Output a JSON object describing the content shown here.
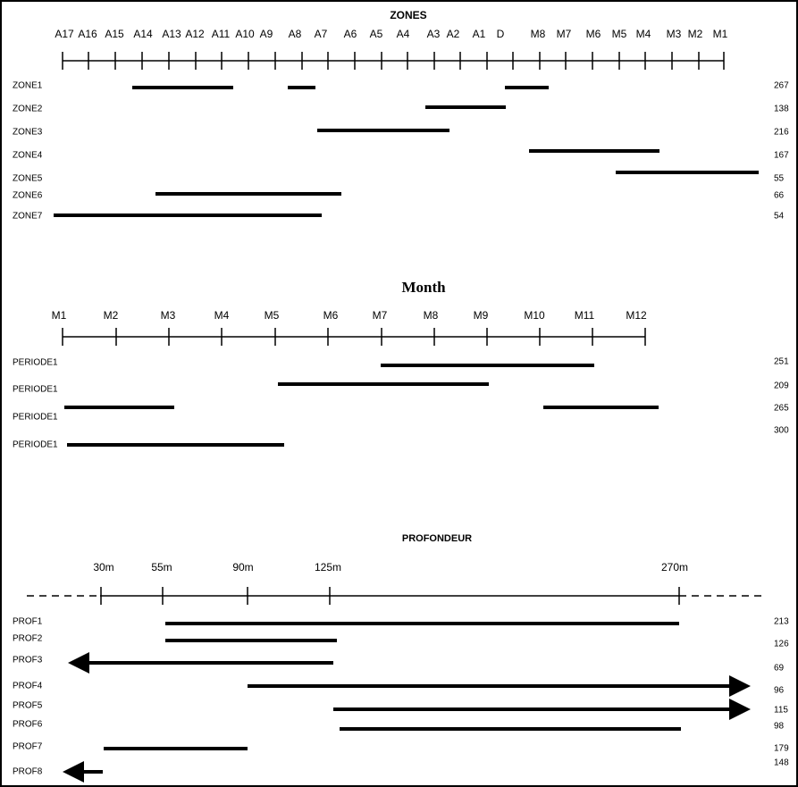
{
  "zones": {
    "title": "ZONES",
    "axis_labels": [
      "A17",
      "A16",
      "A15",
      "A14",
      "A13",
      "A12",
      "A11",
      "A10",
      "A9",
      "A8",
      "A7",
      "A6",
      "A5",
      "A4",
      "A3",
      "A2",
      "A1",
      "D",
      "M8",
      "M7",
      "M6",
      "M5",
      "M4",
      "M3",
      "M2",
      "M1"
    ],
    "rows": [
      {
        "label": "ZONE1",
        "value": "267"
      },
      {
        "label": "ZONE2",
        "value": "138"
      },
      {
        "label": "ZONE3",
        "value": "216"
      },
      {
        "label": "ZONE4",
        "value": "167"
      },
      {
        "label": "ZONE5",
        "value": "55"
      },
      {
        "label": "ZONE6",
        "value": "66"
      },
      {
        "label": "ZONE7",
        "value": "54"
      }
    ]
  },
  "month": {
    "title": "Month",
    "axis_labels": [
      "M1",
      "M2",
      "M3",
      "M4",
      "M5",
      "M6",
      "M7",
      "M8",
      "M9",
      "M10",
      "M11",
      "M12"
    ],
    "rows": [
      {
        "label": "PERIODE1",
        "value": "251"
      },
      {
        "label": "PERIODE1",
        "value": "209"
      },
      {
        "label": "PERIODE1",
        "value": "265"
      },
      {
        "label": "PERIODE1",
        "value": "300"
      }
    ]
  },
  "profondeur": {
    "title": "PROFONDEUR",
    "axis_labels": [
      "30m",
      "55m",
      "90m",
      "125m",
      "270m"
    ],
    "rows": [
      {
        "label": "PROF1",
        "value": "213"
      },
      {
        "label": "PROF2",
        "value": "126"
      },
      {
        "label": "PROF3",
        "value": "69"
      },
      {
        "label": "PROF4",
        "value": "96"
      },
      {
        "label": "PROF5",
        "value": "115"
      },
      {
        "label": "PROF6",
        "value": "98"
      },
      {
        "label": "PROF7",
        "value": "179"
      },
      {
        "label": "PROF8",
        "value": "148"
      }
    ]
  }
}
